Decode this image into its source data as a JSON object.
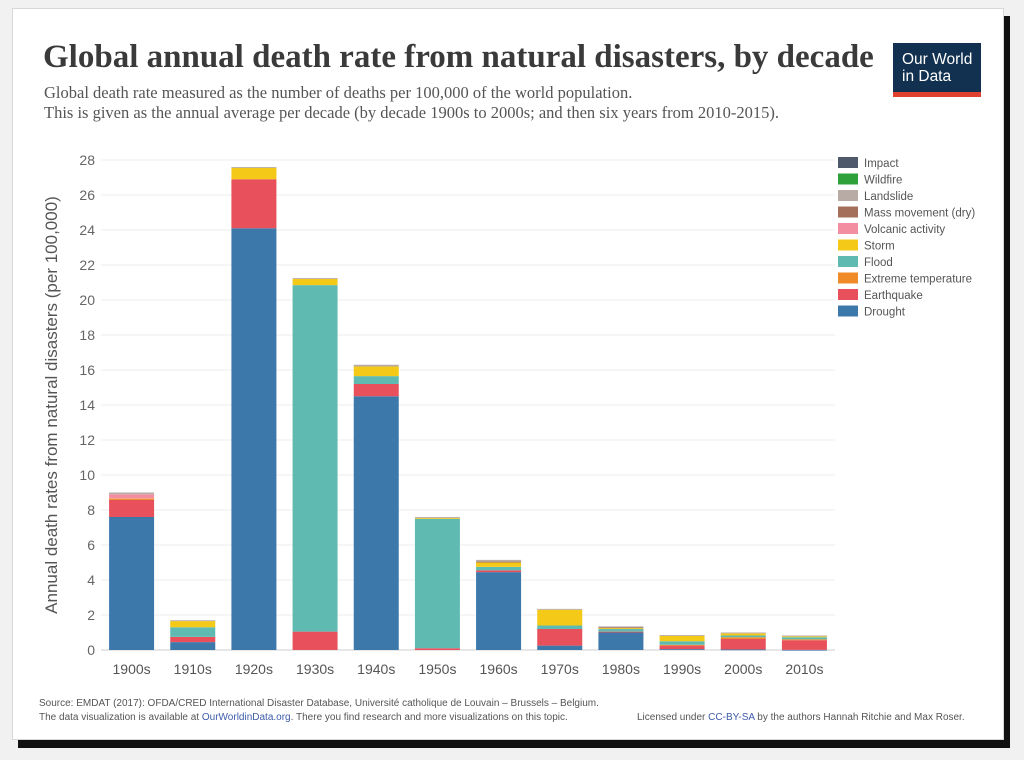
{
  "title": "Global annual death rate from natural disasters, by decade",
  "subtitle_line1": "Global death rate measured as the number of deaths per 100,000 of the world population.",
  "subtitle_line2": "This is given as the annual average per decade (by decade 1900s to 2000s; and then six years from 2010-2015).",
  "logo": {
    "line1": "Our World",
    "line2": "in Data",
    "bg": "#12304f",
    "accent": "#e0402e"
  },
  "footer": {
    "source": "Source: EMDAT (2017): OFDA/CRED International Disaster Database, Université catholique de Louvain – Brussels – Belgium.",
    "visualization_prefix": "The data visualization is available at ",
    "visualization_link": "OurWorldinData.org",
    "visualization_suffix": ". There you find research and more visualizations on this topic.",
    "license_prefix": "Licensed under ",
    "license_link": "CC-BY-SA",
    "license_suffix": " by the authors Hannah Ritchie and Max Roser."
  },
  "chart_data": {
    "type": "bar",
    "stacked": true,
    "ylabel": "Annual death rates from natural disasters (per 100,000)",
    "xlabel": "",
    "ylim": [
      0,
      28
    ],
    "yticks": [
      0,
      2,
      4,
      6,
      8,
      10,
      12,
      14,
      16,
      18,
      20,
      22,
      24,
      26,
      28
    ],
    "grid": true,
    "legend_position": "right",
    "categories": [
      "1900s",
      "1910s",
      "1920s",
      "1930s",
      "1940s",
      "1950s",
      "1960s",
      "1970s",
      "1980s",
      "1990s",
      "2000s",
      "2010s"
    ],
    "series": [
      {
        "name": "Drought",
        "color": "#3d78ab",
        "values": [
          7.6,
          0.45,
          24.1,
          0.0,
          14.5,
          0.0,
          4.45,
          0.25,
          1.0,
          0.05,
          0.03,
          0.01
        ]
      },
      {
        "name": "Earthquake",
        "color": "#e8505b",
        "values": [
          1.0,
          0.3,
          2.8,
          1.05,
          0.7,
          0.1,
          0.1,
          0.95,
          0.05,
          0.2,
          0.6,
          0.55
        ]
      },
      {
        "name": "Extreme temperature",
        "color": "#f08b28",
        "values": [
          0.0,
          0.0,
          0.0,
          0.0,
          0.0,
          0.0,
          0.0,
          0.0,
          0.0,
          0.05,
          0.1,
          0.05
        ]
      },
      {
        "name": "Flood",
        "color": "#5fbbb1",
        "values": [
          0.0,
          0.55,
          0.0,
          19.8,
          0.45,
          7.4,
          0.2,
          0.2,
          0.15,
          0.2,
          0.1,
          0.12
        ]
      },
      {
        "name": "Storm",
        "color": "#f5c918",
        "values": [
          0.05,
          0.35,
          0.65,
          0.35,
          0.55,
          0.05,
          0.25,
          0.9,
          0.05,
          0.3,
          0.12,
          0.05
        ]
      },
      {
        "name": "Volcanic activity",
        "color": "#f28ea0",
        "values": [
          0.25,
          0.0,
          0.0,
          0.0,
          0.0,
          0.0,
          0.0,
          0.0,
          0.0,
          0.0,
          0.0,
          0.0
        ]
      },
      {
        "name": "Mass movement (dry)",
        "color": "#a4705b",
        "values": [
          0.0,
          0.0,
          0.0,
          0.0,
          0.0,
          0.0,
          0.05,
          0.0,
          0.05,
          0.0,
          0.0,
          0.0
        ]
      },
      {
        "name": "Landslide",
        "color": "#b8aaa4",
        "values": [
          0.1,
          0.05,
          0.05,
          0.05,
          0.1,
          0.05,
          0.1,
          0.05,
          0.05,
          0.05,
          0.05,
          0.05
        ]
      },
      {
        "name": "Wildfire",
        "color": "#2ea13a",
        "values": [
          0,
          0,
          0,
          0,
          0,
          0,
          0,
          0,
          0,
          0,
          0,
          0
        ]
      },
      {
        "name": "Impact",
        "color": "#4e5a6b",
        "values": [
          0,
          0,
          0,
          0,
          0,
          0,
          0,
          0,
          0,
          0,
          0,
          0
        ]
      }
    ]
  }
}
